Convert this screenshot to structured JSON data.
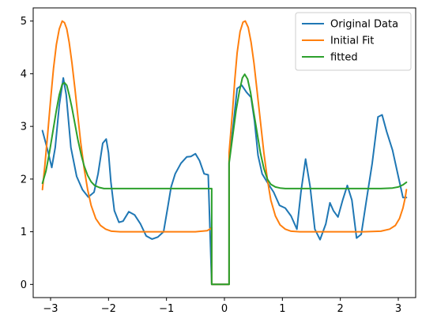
{
  "chart_data": {
    "type": "line",
    "title": "",
    "xlabel": "",
    "ylabel": "",
    "xlim": [
      -3.3,
      3.3
    ],
    "ylim": [
      -0.25,
      5.25
    ],
    "x_ticks": [
      -3,
      -2,
      -1,
      0,
      1,
      2,
      3
    ],
    "y_ticks": [
      0,
      1,
      2,
      3,
      4,
      5
    ],
    "x_tick_labels": [
      "−3",
      "−2",
      "−1",
      "0",
      "1",
      "2",
      "3"
    ],
    "y_tick_labels": [
      "0",
      "1",
      "2",
      "3",
      "4",
      "5"
    ],
    "grid": false,
    "legend": {
      "placement": "top-right"
    },
    "series": [
      {
        "name": "Original Data",
        "color": "#1f77b4",
        "x": [
          -3.14,
          -3.05,
          -2.98,
          -2.92,
          -2.85,
          -2.78,
          -2.73,
          -2.65,
          -2.55,
          -2.45,
          -2.35,
          -2.25,
          -2.18,
          -2.1,
          -2.04,
          -2.0,
          -1.96,
          -1.9,
          -1.82,
          -1.75,
          -1.65,
          -1.55,
          -1.45,
          -1.35,
          -1.25,
          -1.15,
          -1.05,
          -0.98,
          -0.92,
          -0.85,
          -0.75,
          -0.65,
          -0.58,
          -0.5,
          -0.43,
          -0.35,
          -0.28,
          -0.22,
          -0.22,
          -0.1,
          0.0,
          0.08,
          0.08,
          0.15,
          0.22,
          0.3,
          0.38,
          0.46,
          0.52,
          0.58,
          0.65,
          0.75,
          0.85,
          0.95,
          1.05,
          1.15,
          1.25,
          1.32,
          1.4,
          1.48,
          1.56,
          1.65,
          1.75,
          1.82,
          1.88,
          1.96,
          2.04,
          2.12,
          2.2,
          2.28,
          2.36,
          2.45,
          2.55,
          2.65,
          2.72,
          2.8,
          2.9,
          3.0,
          3.08,
          3.14
        ],
        "y": [
          2.92,
          2.55,
          2.22,
          2.6,
          3.4,
          3.92,
          3.6,
          2.6,
          2.05,
          1.8,
          1.66,
          1.75,
          2.1,
          2.68,
          2.76,
          2.5,
          1.95,
          1.4,
          1.18,
          1.2,
          1.38,
          1.32,
          1.15,
          0.92,
          0.86,
          0.9,
          1.0,
          1.45,
          1.85,
          2.1,
          2.3,
          2.42,
          2.43,
          2.48,
          2.35,
          2.1,
          2.08,
          0.0,
          0.0,
          0.0,
          0.0,
          0.0,
          2.35,
          3.0,
          3.72,
          3.78,
          3.65,
          3.55,
          3.1,
          2.45,
          2.1,
          1.92,
          1.75,
          1.5,
          1.45,
          1.3,
          1.05,
          1.75,
          2.38,
          1.85,
          1.05,
          0.85,
          1.15,
          1.55,
          1.4,
          1.28,
          1.6,
          1.88,
          1.6,
          0.88,
          0.95,
          1.6,
          2.3,
          3.18,
          3.22,
          2.9,
          2.55,
          2.05,
          1.65,
          1.65
        ]
      },
      {
        "name": "Initial Fit",
        "color": "#ff7f0e",
        "x": [
          -3.14,
          -3.1,
          -3.05,
          -3.0,
          -2.95,
          -2.9,
          -2.85,
          -2.8,
          -2.76,
          -2.72,
          -2.68,
          -2.63,
          -2.58,
          -2.53,
          -2.48,
          -2.42,
          -2.36,
          -2.3,
          -2.22,
          -2.14,
          -2.05,
          -1.95,
          -1.8,
          -1.5,
          -1.0,
          -0.5,
          -0.3,
          -0.25,
          -0.22,
          -0.22,
          -0.1,
          0.0,
          0.08,
          0.08,
          0.14,
          0.18,
          0.22,
          0.27,
          0.32,
          0.36,
          0.41,
          0.46,
          0.51,
          0.56,
          0.62,
          0.68,
          0.74,
          0.8,
          0.88,
          0.96,
          1.05,
          1.15,
          1.3,
          1.6,
          2.0,
          2.4,
          2.7,
          2.85,
          2.95,
          3.02,
          3.08,
          3.12,
          3.14
        ],
        "y": [
          1.8,
          2.25,
          2.85,
          3.5,
          4.1,
          4.55,
          4.85,
          5.0,
          4.97,
          4.85,
          4.6,
          4.2,
          3.72,
          3.2,
          2.7,
          2.2,
          1.8,
          1.5,
          1.25,
          1.12,
          1.05,
          1.01,
          1.0,
          1.0,
          1.0,
          1.0,
          1.02,
          1.05,
          1.08,
          0.0,
          0.0,
          0.0,
          0.0,
          2.5,
          3.3,
          3.9,
          4.4,
          4.8,
          4.98,
          5.0,
          4.88,
          4.6,
          4.2,
          3.7,
          3.1,
          2.5,
          2.0,
          1.6,
          1.3,
          1.13,
          1.05,
          1.01,
          1.0,
          1.0,
          1.0,
          1.0,
          1.01,
          1.05,
          1.12,
          1.25,
          1.45,
          1.65,
          1.8
        ]
      },
      {
        "name": "fitted",
        "color": "#2ca02c",
        "x": [
          -3.14,
          -3.08,
          -3.02,
          -2.96,
          -2.9,
          -2.85,
          -2.8,
          -2.76,
          -2.72,
          -2.68,
          -2.63,
          -2.58,
          -2.53,
          -2.47,
          -2.42,
          -2.36,
          -2.3,
          -2.24,
          -2.16,
          -2.08,
          -1.95,
          -1.5,
          -1.0,
          -0.5,
          -0.22,
          -0.22,
          -0.1,
          0.0,
          0.08,
          0.08,
          0.14,
          0.2,
          0.26,
          0.31,
          0.35,
          0.4,
          0.45,
          0.5,
          0.56,
          0.62,
          0.68,
          0.74,
          0.8,
          0.88,
          0.96,
          1.05,
          1.2,
          1.6,
          2.0,
          2.4,
          2.7,
          2.9,
          3.0,
          3.08,
          3.14
        ],
        "y": [
          1.92,
          2.15,
          2.5,
          2.9,
          3.3,
          3.6,
          3.8,
          3.83,
          3.78,
          3.6,
          3.35,
          3.05,
          2.75,
          2.45,
          2.25,
          2.07,
          1.95,
          1.88,
          1.84,
          1.82,
          1.82,
          1.82,
          1.82,
          1.82,
          1.82,
          0.0,
          0.0,
          0.0,
          0.0,
          2.3,
          2.8,
          3.3,
          3.68,
          3.92,
          3.99,
          3.9,
          3.65,
          3.3,
          2.9,
          2.5,
          2.2,
          2.0,
          1.9,
          1.85,
          1.83,
          1.82,
          1.82,
          1.82,
          1.82,
          1.82,
          1.82,
          1.83,
          1.85,
          1.89,
          1.94
        ]
      }
    ]
  }
}
